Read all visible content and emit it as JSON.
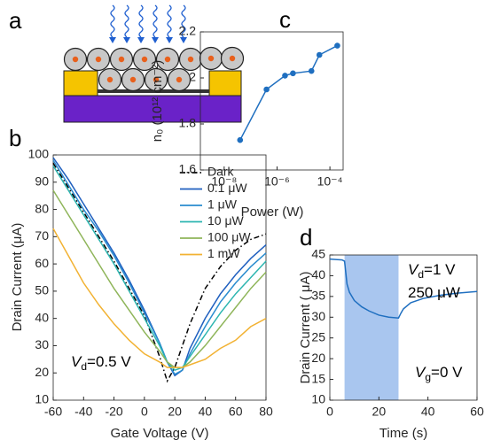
{
  "chart_data": [
    {
      "type": "diagram",
      "panel": "a"
    },
    {
      "type": "line",
      "panel": "b",
      "xlabel": "Gate Voltage (V)",
      "ylabel": "Drain Current (μA)",
      "x": [
        -60,
        -50,
        -40,
        -30,
        -20,
        -10,
        0,
        10,
        15,
        20,
        25,
        30,
        40,
        50,
        60,
        70,
        80
      ],
      "series": [
        {
          "name": "Dark",
          "color": "#000000",
          "style": "dash-dot",
          "values": [
            97,
            88,
            79,
            70,
            61,
            51,
            41,
            26,
            17,
            22,
            30,
            38,
            51,
            59,
            65,
            69,
            71
          ]
        },
        {
          "name": "0.1 μW",
          "color": "#1f5fbf",
          "style": "solid",
          "values": [
            99,
            91,
            82,
            73,
            64,
            54,
            43,
            31,
            24,
            19,
            21,
            29,
            40,
            49,
            56,
            62,
            67
          ]
        },
        {
          "name": "1 μW",
          "color": "#2a8ccf",
          "style": "solid",
          "values": [
            98,
            89,
            80,
            72,
            63,
            53,
            42,
            31,
            24,
            19.5,
            21,
            27,
            37,
            46,
            53,
            59,
            64
          ]
        },
        {
          "name": "10 μW",
          "color": "#2cb5b0",
          "style": "solid",
          "values": [
            96,
            87,
            78,
            69,
            60,
            50,
            40,
            30,
            24,
            21,
            22,
            26,
            34,
            42,
            49,
            55,
            61
          ]
        },
        {
          "name": "100 μW",
          "color": "#8fb55a",
          "style": "solid",
          "values": [
            87,
            78,
            69,
            60,
            51,
            43,
            35,
            28,
            24,
            22,
            22,
            24,
            30,
            37,
            44,
            51,
            57
          ]
        },
        {
          "name": "1 mW",
          "color": "#f2b233",
          "style": "solid",
          "values": [
            73,
            63,
            53,
            45,
            38,
            32,
            27,
            24,
            22,
            22,
            22,
            23,
            25,
            29,
            32,
            37,
            40
          ]
        }
      ],
      "xlim": [
        -60,
        80
      ],
      "ylim": [
        10,
        100
      ],
      "xticks": [
        -60,
        -40,
        -20,
        0,
        20,
        40,
        60,
        80
      ],
      "yticks": [
        10,
        20,
        30,
        40,
        50,
        60,
        70,
        80,
        90,
        100
      ],
      "legend": "upper right",
      "annotations": [
        [
          "V",
          "d",
          "=0.5 V"
        ]
      ]
    },
    {
      "type": "line",
      "panel": "c",
      "xlabel": "Power (W)",
      "ylabel": "n₀ (10¹² cm⁻²)",
      "xscale": "log",
      "x": [
        4e-08,
        4e-07,
        2e-06,
        4e-06,
        2e-05,
        4e-05,
        0.00019
      ],
      "values": [
        1.73,
        1.95,
        2.01,
        2.02,
        2.03,
        2.1,
        2.14
      ],
      "color": "#1f6fc0",
      "markers": true,
      "xlim": [
        1.26e-09,
        0.000316
      ],
      "ylim": [
        1.6,
        2.2
      ],
      "xticks": [
        {
          "value": 1e-08,
          "label": "10⁻⁸"
        },
        {
          "value": 1e-06,
          "label": "10⁻⁶"
        },
        {
          "value": 0.0001,
          "label": "10⁻⁴"
        }
      ],
      "yticks": [
        1.6,
        1.8,
        2,
        2.2
      ]
    },
    {
      "type": "line",
      "panel": "d",
      "xlabel": "Time (s)",
      "ylabel": "Drain Current ( μA)",
      "x": [
        0,
        5,
        6,
        7,
        8,
        10,
        13,
        16,
        20,
        24,
        28,
        29,
        30,
        33,
        38,
        45,
        52,
        60
      ],
      "values": [
        44,
        43.8,
        43.5,
        38,
        36,
        34,
        32.5,
        31.5,
        30.5,
        30,
        29.8,
        31,
        32,
        33.5,
        34.5,
        35.3,
        35.8,
        36.2
      ],
      "color": "#1f6fc0",
      "highlight_x": [
        6,
        28
      ],
      "highlight_color": "#a9c6ef",
      "xlim": [
        0,
        60
      ],
      "ylim": [
        10,
        45
      ],
      "xticks": [
        0,
        20,
        40,
        60
      ],
      "yticks": [
        10,
        15,
        20,
        25,
        30,
        35,
        40,
        45
      ],
      "annotations": [
        [
          "V",
          "d",
          "=1 V"
        ],
        [
          "",
          "",
          "250 μW"
        ],
        [
          "V",
          "g",
          "=0 V"
        ]
      ]
    }
  ]
}
